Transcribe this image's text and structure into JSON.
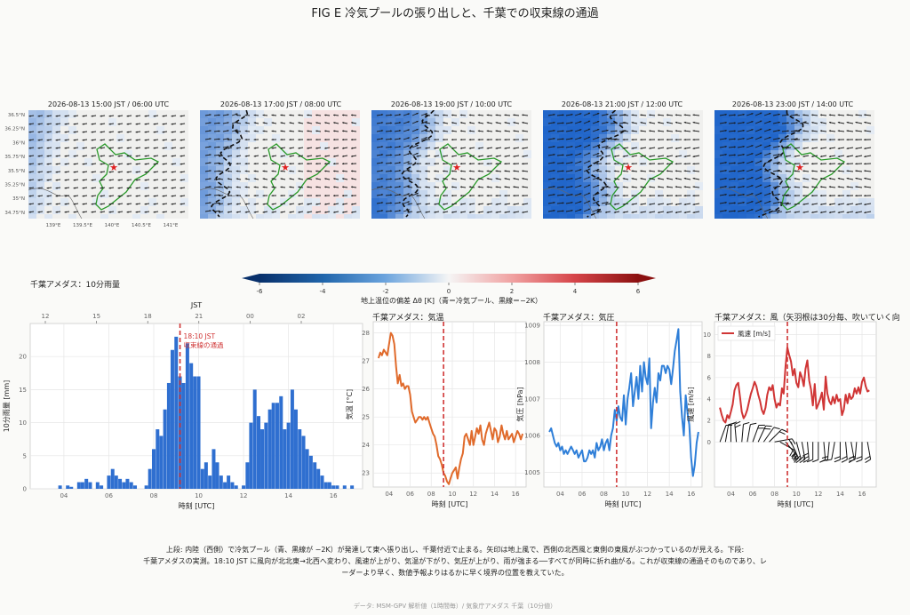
{
  "title": "FIG E  冷気プールの張り出しと、千葉での収束線の通過",
  "maps": [
    {
      "title": "2026-08-13 15:00 JST / 06:00 UTC",
      "intensity": 0.1
    },
    {
      "title": "2026-08-13 17:00 JST / 08:00 UTC",
      "intensity": 0.35
    },
    {
      "title": "2026-08-13 19:00 JST / 10:00 UTC",
      "intensity": 0.6
    },
    {
      "title": "2026-08-13 21:00 JST / 12:00 UTC",
      "intensity": 0.85
    },
    {
      "title": "2026-08-13 23:00 JST / 14:00 UTC",
      "intensity": 0.95
    }
  ],
  "map_axes": {
    "lat_ticks": [
      "36.5°N",
      "36.25°N",
      "36°N",
      "35.75°N",
      "35.5°N",
      "35.25°N",
      "35°N",
      "34.75°N"
    ],
    "lon_ticks": [
      "139°E",
      "139.5°E",
      "140°E",
      "140.5°E",
      "141°E"
    ]
  },
  "colorbar": {
    "label": "地上温位の偏差 Δθ [K]（青＝冷気プール、黒線＝−2K）",
    "ticks": [
      "-6",
      "-4",
      "-2",
      "0",
      "2",
      "4",
      "6"
    ]
  },
  "colors": {
    "bar": "#2f6fd0",
    "temp": "#e06a2b",
    "pressure": "#2f7fd8",
    "wind": "#d03535",
    "event": "#d03535",
    "station": "#e02020",
    "coast": "#2a9a2a",
    "cool": "#2f6fd0",
    "warm": "#d04040"
  },
  "chart_data": [
    {
      "type": "bar",
      "title": "千葉アメダス：10分雨量",
      "xlabel": "時刻 [UTC]",
      "ylabel": "10分雨量 [mm]",
      "top_axis_label": "JST",
      "top_ticks": [
        "12",
        "15",
        "18",
        "21",
        "00",
        "02"
      ],
      "x_ticks": [
        "04",
        "06",
        "08",
        "10",
        "12",
        "14",
        "16"
      ],
      "y_ticks": [
        "0",
        "5",
        "10",
        "15",
        "20"
      ],
      "xlim": [
        2.5,
        17.3
      ],
      "ylim": [
        0,
        25
      ],
      "x": [
        3.83,
        4.17,
        4.33,
        4.67,
        4.83,
        5,
        5.17,
        5.5,
        5.67,
        6,
        6.17,
        6.33,
        6.5,
        6.67,
        6.83,
        7,
        7.17,
        7.67,
        7.83,
        8,
        8.17,
        8.33,
        8.5,
        8.67,
        8.83,
        9,
        9.17,
        9.33,
        9.5,
        9.67,
        9.83,
        10,
        10.17,
        10.33,
        10.5,
        10.67,
        10.83,
        11,
        11.17,
        11.33,
        11.5,
        11.67,
        12,
        12.17,
        12.33,
        12.5,
        12.67,
        12.83,
        13,
        13.17,
        13.33,
        13.5,
        13.67,
        13.83,
        14,
        14.17,
        14.33,
        14.5,
        14.67,
        14.83,
        15,
        15.17,
        15.33,
        15.5,
        15.67,
        15.83,
        16,
        16.17,
        16.5,
        16.83
      ],
      "values": [
        0.5,
        0.5,
        0.3,
        1.0,
        1.0,
        1.5,
        1.0,
        1.0,
        0.5,
        2.0,
        3.0,
        2.0,
        1.5,
        1.0,
        1.5,
        1.0,
        0.5,
        0.5,
        3.0,
        6.0,
        9.0,
        8.0,
        12.0,
        16.0,
        21.0,
        23.0,
        17.0,
        16.0,
        22.0,
        19.0,
        17.0,
        17.0,
        3.0,
        4.0,
        2.0,
        6.0,
        4.0,
        2.0,
        1.0,
        2.0,
        1.0,
        0.5,
        0.5,
        4.0,
        10.0,
        15.0,
        11.0,
        9.0,
        10.0,
        12.0,
        13.0,
        13.0,
        14.0,
        9.0,
        10.0,
        15.0,
        12.0,
        9.0,
        8.0,
        6.0,
        5.0,
        4.0,
        3.0,
        2.0,
        1.0,
        1.0,
        0.5,
        0.5,
        0.5,
        0.5
      ],
      "event_time": 9.17,
      "event_label": "18:10 JST",
      "event_label2": "収束線の通過"
    },
    {
      "type": "line",
      "title": "千葉アメダス：気温",
      "xlabel": "時刻 [UTC]",
      "ylabel": "気温 [°C]",
      "x_ticks": [
        "04",
        "06",
        "08",
        "10",
        "12",
        "14",
        "16"
      ],
      "y_ticks": [
        "23",
        "24",
        "25",
        "26",
        "27",
        "28"
      ],
      "xlim": [
        2.5,
        17.0
      ],
      "ylim": [
        22.5,
        28.4
      ],
      "x": [
        3.0,
        3.17,
        3.33,
        3.5,
        3.67,
        3.83,
        4.0,
        4.17,
        4.33,
        4.5,
        4.67,
        4.83,
        5.0,
        5.17,
        5.33,
        5.5,
        5.67,
        5.83,
        6.0,
        6.17,
        6.33,
        6.5,
        6.67,
        6.83,
        7.0,
        7.17,
        7.33,
        7.5,
        7.67,
        7.83,
        8.0,
        8.17,
        8.33,
        8.5,
        8.67,
        8.83,
        9.0,
        9.17,
        9.33,
        9.5,
        9.67,
        9.83,
        10.0,
        10.17,
        10.33,
        10.5,
        10.67,
        10.83,
        11.0,
        11.17,
        11.33,
        11.5,
        11.67,
        11.83,
        12.0,
        12.17,
        12.33,
        12.5,
        12.67,
        12.83,
        13.0,
        13.17,
        13.33,
        13.5,
        13.67,
        13.83,
        14.0,
        14.17,
        14.33,
        14.5,
        14.67,
        14.83,
        15.0,
        15.17,
        15.33,
        15.5,
        15.67,
        15.83,
        16.0,
        16.17,
        16.33,
        16.5,
        16.67
      ],
      "values": [
        27.1,
        27.3,
        27.2,
        27.4,
        27.3,
        27.2,
        27.6,
        28.0,
        27.9,
        27.6,
        26.8,
        26.2,
        26.5,
        26.1,
        26.2,
        26.0,
        26.1,
        26.1,
        25.8,
        25.2,
        25.0,
        24.8,
        24.9,
        25.0,
        25.0,
        24.9,
        25.0,
        24.9,
        25.0,
        24.8,
        24.6,
        24.4,
        24.3,
        24.0,
        23.6,
        23.5,
        23.3,
        23.0,
        22.9,
        22.7,
        22.6,
        22.8,
        23.0,
        23.1,
        23.2,
        22.8,
        23.2,
        23.5,
        23.7,
        24.3,
        24.4,
        24.2,
        24.0,
        24.5,
        24.0,
        24.3,
        24.6,
        24.4,
        24.7,
        24.2,
        24.0,
        24.4,
        24.6,
        24.8,
        24.5,
        24.2,
        24.6,
        24.5,
        24.1,
        24.3,
        24.7,
        24.4,
        24.2,
        24.5,
        24.2,
        24.3,
        24.4,
        24.1,
        24.3,
        24.5,
        24.4,
        24.2,
        24.4
      ],
      "event_time": 9.17
    },
    {
      "type": "line",
      "title": "千葉アメダス：気圧",
      "xlabel": "時刻 [UTC]",
      "ylabel": "気圧 [hPa]",
      "x_ticks": [
        "04",
        "06",
        "08",
        "10",
        "12",
        "14",
        "16"
      ],
      "y_ticks": [
        "1005",
        "1006",
        "1007",
        "1008",
        "1009"
      ],
      "xlim": [
        2.5,
        17.0
      ],
      "ylim": [
        1004.6,
        1009.1
      ],
      "x": [
        3.0,
        3.17,
        3.33,
        3.5,
        3.67,
        3.83,
        4.0,
        4.17,
        4.33,
        4.5,
        4.67,
        4.83,
        5.0,
        5.17,
        5.33,
        5.5,
        5.67,
        5.83,
        6.0,
        6.17,
        6.33,
        6.5,
        6.67,
        6.83,
        7.0,
        7.17,
        7.33,
        7.5,
        7.67,
        7.83,
        8.0,
        8.17,
        8.33,
        8.5,
        8.67,
        8.83,
        9.0,
        9.17,
        9.33,
        9.5,
        9.67,
        9.83,
        10.0,
        10.17,
        10.33,
        10.5,
        10.67,
        10.83,
        11.0,
        11.17,
        11.33,
        11.5,
        11.67,
        11.83,
        12.0,
        12.17,
        12.33,
        12.5,
        12.67,
        12.83,
        13.0,
        13.17,
        13.33,
        13.5,
        13.67,
        13.83,
        14.0,
        14.17,
        14.33,
        14.5,
        14.67,
        14.83,
        15.0,
        15.17,
        15.33,
        15.5,
        15.67,
        15.83,
        16.0,
        16.17,
        16.33,
        16.5,
        16.67
      ],
      "values": [
        1006.1,
        1006.2,
        1006.0,
        1005.8,
        1005.7,
        1005.8,
        1005.6,
        1005.7,
        1005.5,
        1005.6,
        1005.5,
        1005.6,
        1005.7,
        1005.6,
        1005.5,
        1005.6,
        1005.4,
        1005.5,
        1005.6,
        1005.3,
        1005.3,
        1005.4,
        1005.6,
        1005.5,
        1005.6,
        1005.4,
        1005.8,
        1005.6,
        1005.7,
        1005.9,
        1005.6,
        1005.8,
        1005.9,
        1005.6,
        1006.0,
        1006.2,
        1006.7,
        1006.4,
        1006.8,
        1006.5,
        1006.4,
        1007.1,
        1006.3,
        1007.0,
        1007.3,
        1007.7,
        1006.8,
        1007.2,
        1007.6,
        1007.0,
        1007.9,
        1007.2,
        1008.0,
        1007.6,
        1007.4,
        1008.1,
        1006.2,
        1006.9,
        1007.3,
        1006.9,
        1007.7,
        1007.5,
        1007.9,
        1007.9,
        1007.7,
        1007.9,
        1007.8,
        1007.4,
        1007.8,
        1008.3,
        1008.6,
        1008.9,
        1007.2,
        1006.5,
        1006.0,
        1007.1,
        1006.6,
        1006.3,
        1005.4,
        1004.9,
        1005.2,
        1005.8,
        1006.1
      ],
      "event_time": 9.17
    },
    {
      "type": "line",
      "title": "千葉アメダス：風（矢羽根は30分毎、吹いていく向き）",
      "xlabel": "時刻 [UTC]",
      "ylabel": "風速 [m/s]",
      "legend": "風速 [m/s]",
      "legend_loc": "top-left",
      "x_ticks": [
        "04",
        "06",
        "08",
        "10",
        "12",
        "14",
        "16"
      ],
      "y_ticks": [
        "0",
        "2",
        "4",
        "6",
        "8",
        "10"
      ],
      "xlim": [
        2.5,
        17.3
      ],
      "ylim": [
        -4.2,
        11.2
      ],
      "x": [
        3.0,
        3.17,
        3.33,
        3.5,
        3.67,
        3.83,
        4.0,
        4.17,
        4.33,
        4.5,
        4.67,
        4.83,
        5.0,
        5.17,
        5.33,
        5.5,
        5.67,
        5.83,
        6.0,
        6.17,
        6.33,
        6.5,
        6.67,
        6.83,
        7.0,
        7.17,
        7.33,
        7.5,
        7.67,
        7.83,
        8.0,
        8.17,
        8.33,
        8.5,
        8.67,
        8.83,
        9.0,
        9.17,
        9.33,
        9.5,
        9.67,
        9.83,
        10.0,
        10.17,
        10.33,
        10.5,
        10.67,
        10.83,
        11.0,
        11.17,
        11.33,
        11.5,
        11.67,
        11.83,
        12.0,
        12.17,
        12.33,
        12.5,
        12.67,
        12.83,
        13.0,
        13.17,
        13.33,
        13.5,
        13.67,
        13.83,
        14.0,
        14.17,
        14.33,
        14.5,
        14.67,
        14.83,
        15.0,
        15.17,
        15.33,
        15.5,
        15.67,
        15.83,
        16.0,
        16.17,
        16.33,
        16.5,
        16.67
      ],
      "values": [
        3.2,
        2.5,
        2.0,
        1.8,
        2.5,
        2.2,
        2.8,
        3.5,
        4.8,
        5.3,
        5.5,
        4.2,
        2.8,
        2.2,
        2.5,
        3.0,
        3.8,
        4.5,
        5.0,
        5.6,
        5.2,
        4.4,
        3.8,
        3.0,
        2.6,
        3.2,
        4.4,
        5.1,
        4.8,
        5.3,
        4.0,
        3.2,
        3.6,
        3.4,
        5.0,
        4.5,
        7.0,
        8.8,
        8.1,
        7.5,
        6.2,
        6.8,
        5.5,
        5.1,
        6.5,
        6.0,
        5.2,
        6.8,
        7.6,
        5.7,
        4.9,
        3.4,
        5.4,
        3.1,
        3.5,
        4.0,
        4.6,
        3.0,
        6.1,
        4.5,
        3.8,
        3.5,
        4.2,
        3.6,
        4.4,
        3.8,
        4.0,
        2.5,
        3.0,
        4.4,
        3.6,
        4.5,
        4.0,
        4.2,
        5.0,
        4.5,
        5.1,
        4.5,
        5.6,
        6.0,
        5.2,
        4.7,
        4.8
      ],
      "barbs": {
        "times": [
          3.0,
          3.5,
          4.0,
          4.5,
          5.0,
          5.5,
          6.0,
          6.5,
          7.0,
          7.5,
          8.0,
          8.5,
          9.0,
          9.5,
          10.0,
          10.5,
          11.0,
          11.5,
          12.0,
          12.5,
          13.0,
          13.5,
          14.0,
          14.5,
          15.0,
          15.5,
          16.0,
          16.5
        ],
        "dir_deg": [
          200,
          190,
          180,
          175,
          185,
          190,
          200,
          205,
          215,
          225,
          260,
          300,
          320,
          335,
          345,
          350,
          355,
          0,
          0,
          355,
          5,
          10,
          0,
          355,
          350,
          5,
          0,
          350
        ],
        "speed": [
          3.2,
          1.8,
          2.8,
          5.3,
          2.8,
          3.0,
          5.0,
          4.4,
          2.6,
          5.1,
          4.0,
          3.4,
          7.0,
          7.5,
          5.5,
          6.0,
          7.6,
          3.4,
          3.5,
          3.0,
          3.8,
          3.6,
          4.0,
          4.4,
          4.0,
          4.5,
          5.6,
          4.7
        ]
      },
      "event_time": 9.17
    }
  ],
  "caption_line1": "上段: 内陸（西側）で冷気プール（青、黒線が −2K）が発達して東へ張り出し、千葉付近で止まる。矢印は地上風で、西側の北西風と東側の東風がぶつかっているのが見える。下段:",
  "caption_line2": "千葉アメダスの実測。18:10 JST に風向が北北東→北西へ変わり、風速が上がり、気温が下がり、気圧が上がり、雨が強まる──すべてが同時に折れ曲がる。これが収束線の通過そのものであり、レ",
  "caption_line3": "ーダーより早く、数値予報よりはるかに早く境界の位置を教えていた。",
  "footer": "データ: MSM-GPV 解析値（1時間毎）/ 気象庁アメダス 千葉（10分値）"
}
